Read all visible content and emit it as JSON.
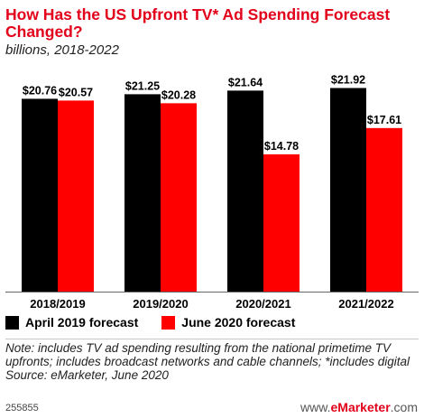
{
  "chart_data": {
    "type": "bar",
    "title": "How Has the US Upfront TV* Ad Spending Forecast Changed?",
    "subtitle": "billions, 2018-2022",
    "categories": [
      "2018/2019",
      "2019/2020",
      "2020/2021",
      "2021/2022"
    ],
    "series": [
      {
        "name": "April 2019 forecast",
        "color": "#000000",
        "values": [
          20.76,
          21.25,
          21.64,
          21.92
        ],
        "labels": [
          "$20.76",
          "$21.25",
          "$21.64",
          "$21.92"
        ]
      },
      {
        "name": "June 2020 forecast",
        "color": "#ff0000",
        "values": [
          20.57,
          20.28,
          14.78,
          17.61
        ],
        "labels": [
          "$20.57",
          "$20.28",
          "$14.78",
          "$17.61"
        ]
      }
    ],
    "ylim": [
      0,
      22.94
    ],
    "grid": false,
    "legend_position": "bottom-left"
  },
  "note_text": "Note: includes TV ad spending resulting from the national primetime TV upfronts; includes broadcast networks and cable channels; *includes digital",
  "source_text": "Source: eMarketer, June 2020",
  "chart_id": "255855",
  "brand": {
    "prefix": "www.",
    "name": "eMarketer",
    "suffix": ".com"
  }
}
